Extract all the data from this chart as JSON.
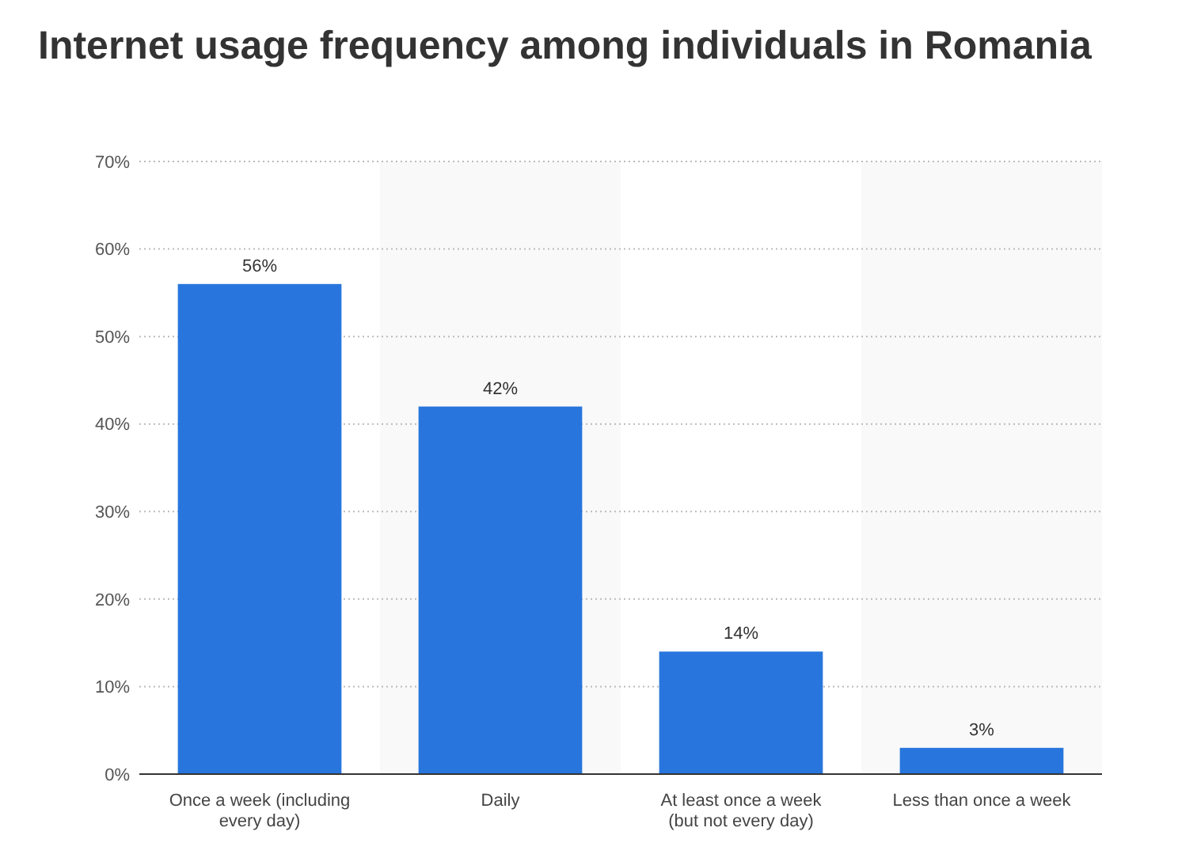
{
  "chart_data": {
    "type": "bar",
    "title": "Internet usage frequency among individuals in Romania",
    "categories": [
      "Once a week (including every day)",
      "Daily",
      "At least once a week (but not every day)",
      "Less than once a week"
    ],
    "values": [
      56,
      42,
      14,
      3
    ],
    "color": "#2876dd",
    "value_labels": [
      "56%",
      "42%",
      "14%",
      "3%"
    ],
    "ylim": [
      0,
      70
    ],
    "yticks": [
      {
        "value": 0,
        "label": "0%"
      },
      {
        "value": 10,
        "label": "10%"
      },
      {
        "value": 20,
        "label": "20%"
      },
      {
        "value": 30,
        "label": "30%"
      },
      {
        "value": 40,
        "label": "40%"
      },
      {
        "value": 50,
        "label": "50%"
      },
      {
        "value": 60,
        "label": "60%"
      },
      {
        "value": 70,
        "label": "70%"
      }
    ],
    "grid": "y"
  }
}
